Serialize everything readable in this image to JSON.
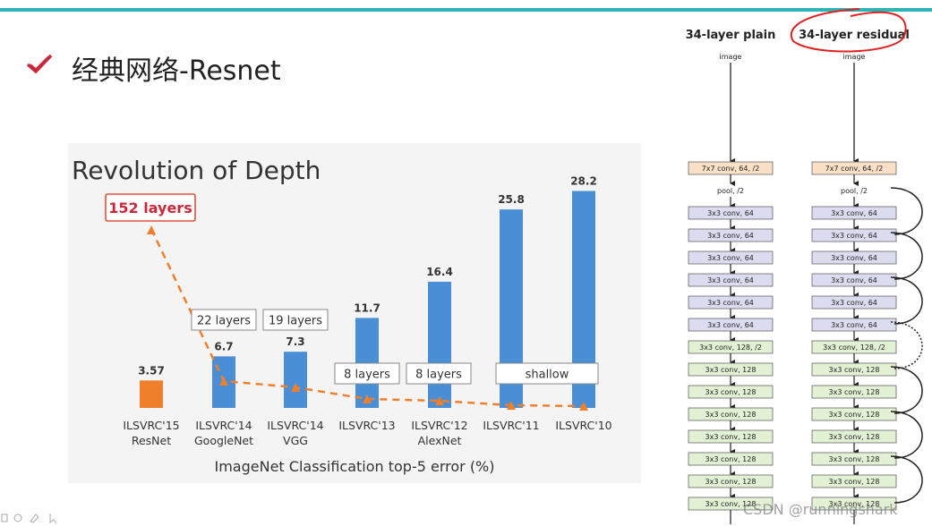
{
  "slide": {
    "title": "经典网络-Resnet"
  },
  "chart_data": {
    "type": "bar",
    "title": "Revolution of Depth",
    "xlabel": "ImageNet Classification top-5 error (%)",
    "ylabel": "",
    "ylim": [
      0,
      30
    ],
    "grid": false,
    "categories": [
      [
        "ILSVRC'15",
        "ResNet"
      ],
      [
        "ILSVRC'14",
        "GoogleNet"
      ],
      [
        "ILSVRC'14",
        "VGG"
      ],
      [
        "ILSVRC'13"
      ],
      [
        "ILSVRC'12",
        "AlexNet"
      ],
      [
        "ILSVRC'11"
      ],
      [
        "ILSVRC'10"
      ]
    ],
    "values": [
      3.57,
      6.7,
      7.3,
      11.7,
      16.4,
      25.8,
      28.2
    ],
    "value_labels": [
      "3.57",
      "6.7",
      "7.3",
      "11.7",
      "16.4",
      "25.8",
      "28.2"
    ],
    "bar_colors": [
      "#f07f2c",
      "#4a8fd6",
      "#4a8fd6",
      "#4a8fd6",
      "#4a8fd6",
      "#4a8fd6",
      "#4a8fd6"
    ],
    "depth_line_color": "#f07f2c",
    "depth_labels": [
      {
        "category": 0,
        "text": "152 layers",
        "highlight": true
      },
      {
        "category": 1,
        "text": "22 layers"
      },
      {
        "category": 2,
        "text": "19 layers"
      },
      {
        "category": 3,
        "text": "8 layers"
      },
      {
        "category": 4,
        "text": "8 layers"
      },
      {
        "span": [
          5,
          6
        ],
        "text": "shallow"
      }
    ]
  },
  "architecture": {
    "columns": [
      "34-layer plain",
      "34-layer residual"
    ],
    "input_label": "image",
    "layers": [
      {
        "label": "7x7 conv, 64, /2",
        "kind": "stem"
      },
      {
        "label": "pool, /2",
        "kind": "pool"
      },
      {
        "label": "3x3 conv, 64",
        "kind": "c64"
      },
      {
        "label": "3x3 conv, 64",
        "kind": "c64"
      },
      {
        "label": "3x3 conv, 64",
        "kind": "c64"
      },
      {
        "label": "3x3 conv, 64",
        "kind": "c64"
      },
      {
        "label": "3x3 conv, 64",
        "kind": "c64"
      },
      {
        "label": "3x3 conv, 64",
        "kind": "c64"
      },
      {
        "label": "3x3 conv, 128, /2",
        "kind": "c128s"
      },
      {
        "label": "3x3 conv, 128",
        "kind": "c128"
      },
      {
        "label": "3x3 conv, 128",
        "kind": "c128"
      },
      {
        "label": "3x3 conv, 128",
        "kind": "c128"
      },
      {
        "label": "3x3 conv, 128",
        "kind": "c128"
      },
      {
        "label": "3x3 conv, 128",
        "kind": "c128"
      },
      {
        "label": "3x3 conv, 128",
        "kind": "c128"
      },
      {
        "label": "3x3 conv, 128",
        "kind": "c128"
      }
    ],
    "colors": {
      "stem": "#fbe0c8",
      "c64": "#dcdcf0",
      "c128": "#e2f0d4",
      "annotation": "#e02020"
    }
  },
  "watermark": "CSDN @runningshark"
}
